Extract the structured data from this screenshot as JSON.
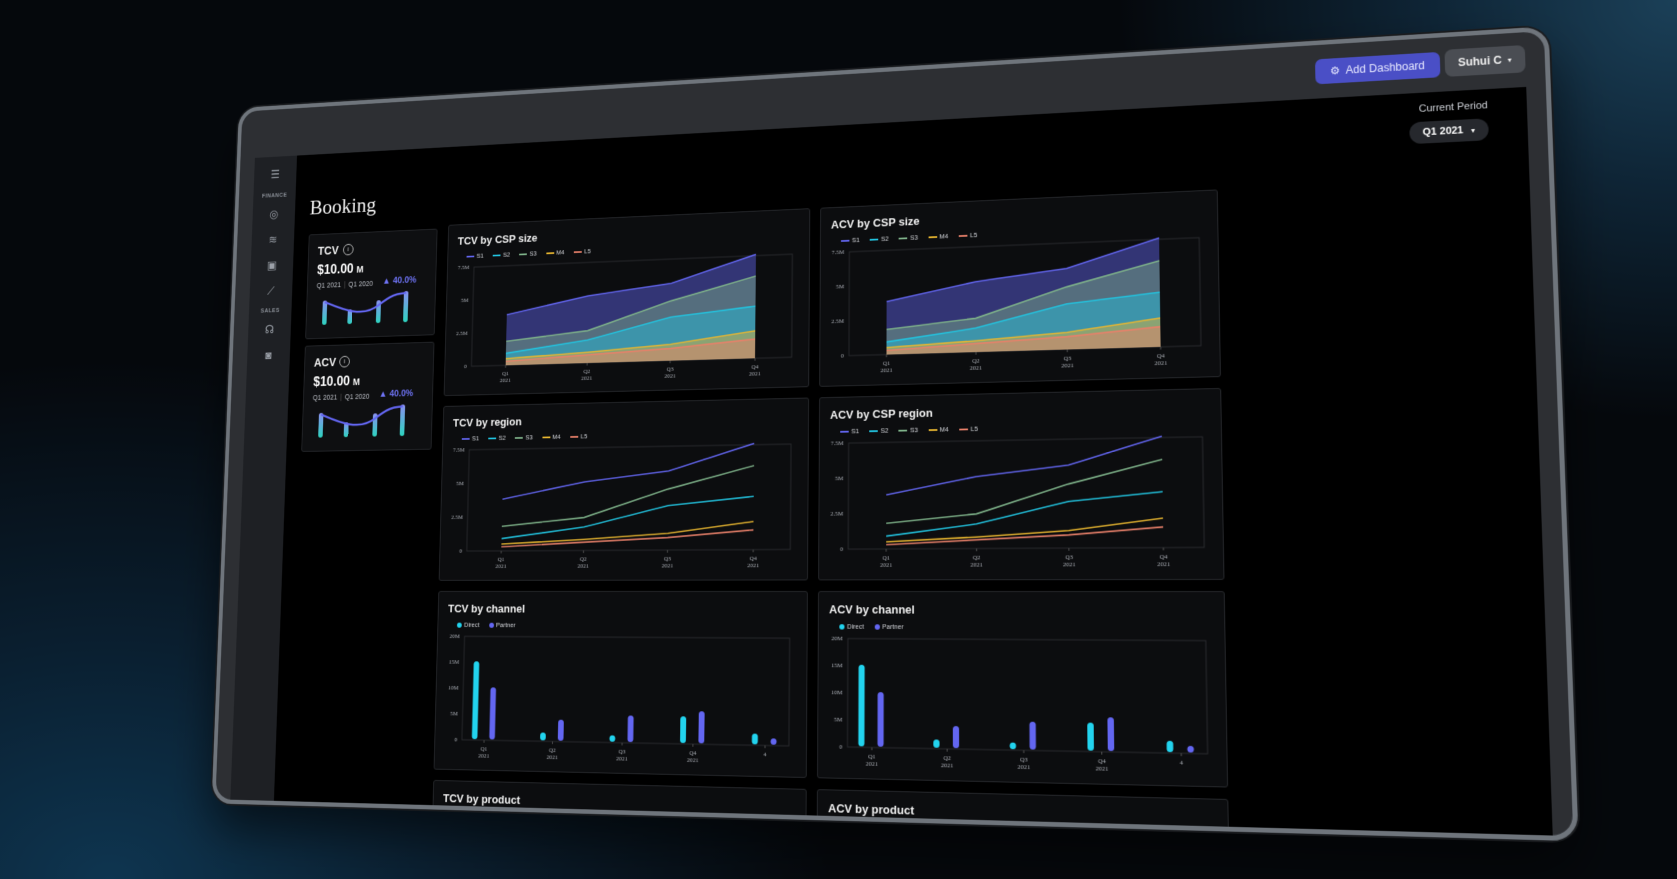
{
  "header": {
    "add_dashboard_label": "Add Dashboard",
    "user_label": "Suhui C"
  },
  "sidebar": {
    "section_finance": "FINANCE",
    "section_sales": "SALES"
  },
  "page": {
    "title": "Booking",
    "period_label": "Current Period",
    "period_value": "Q1 2021"
  },
  "kpis": [
    {
      "title": "TCV",
      "value": "$10.00",
      "unit": "M",
      "period_current": "Q1 2021",
      "period_prev": "Q1 2020",
      "change": "40.0%"
    },
    {
      "title": "ACV",
      "value": "$10.00",
      "unit": "M",
      "period_current": "Q1 2021",
      "period_prev": "Q1 2020",
      "change": "40.0%"
    }
  ],
  "colors": {
    "s1": "#6366f1",
    "s2": "#22c4e0",
    "s3": "#7fb38a",
    "m4": "#e8b630",
    "l5": "#e8806a",
    "direct": "#22d3ee",
    "partner": "#6366f1"
  },
  "chart_data": [
    {
      "type": "area",
      "title": "TCV by CSP size",
      "categories": [
        "Q1 2021",
        "Q2 2021",
        "Q3 2021",
        "Q4 2021"
      ],
      "y_ticks": [
        "0",
        "2.5M",
        "5M",
        "7.5M"
      ],
      "ylim": [
        0,
        7500000
      ],
      "series": [
        {
          "name": "S1",
          "values": [
            3800000,
            5000000,
            5700000,
            7600000
          ]
        },
        {
          "name": "S2",
          "values": [
            900000,
            1700000,
            3200000,
            3800000
          ]
        },
        {
          "name": "S3",
          "values": [
            1800000,
            2400000,
            4400000,
            6000000
          ]
        },
        {
          "name": "M4",
          "values": [
            500000,
            800000,
            1200000,
            2000000
          ]
        },
        {
          "name": "L5",
          "values": [
            300000,
            600000,
            900000,
            1400000
          ]
        }
      ]
    },
    {
      "type": "area",
      "title": "ACV by CSP size",
      "categories": [
        "Q1 2021",
        "Q2 2021",
        "Q3 2021",
        "Q4 2021"
      ],
      "y_ticks": [
        "0",
        "2.5M",
        "5M",
        "7.5M"
      ],
      "ylim": [
        0,
        7500000
      ],
      "series": [
        {
          "name": "S1",
          "values": [
            3800000,
            5000000,
            5700000,
            7600000
          ]
        },
        {
          "name": "S2",
          "values": [
            900000,
            1700000,
            3200000,
            3800000
          ]
        },
        {
          "name": "S3",
          "values": [
            1800000,
            2400000,
            4400000,
            6000000
          ]
        },
        {
          "name": "M4",
          "values": [
            500000,
            800000,
            1200000,
            2000000
          ]
        },
        {
          "name": "L5",
          "values": [
            300000,
            600000,
            900000,
            1400000
          ]
        }
      ]
    },
    {
      "type": "line",
      "title": "TCV by region",
      "categories": [
        "Q1 2021",
        "Q2 2021",
        "Q3 2021",
        "Q4 2021"
      ],
      "y_ticks": [
        "0",
        "2.5M",
        "5M",
        "7.5M"
      ],
      "ylim": [
        0,
        7500000
      ],
      "series": [
        {
          "name": "S1",
          "values": [
            3800000,
            5000000,
            5700000,
            7600000
          ]
        },
        {
          "name": "S2",
          "values": [
            900000,
            1700000,
            3200000,
            3800000
          ]
        },
        {
          "name": "S3",
          "values": [
            1800000,
            2400000,
            4400000,
            6000000
          ]
        },
        {
          "name": "M4",
          "values": [
            500000,
            800000,
            1200000,
            2000000
          ]
        },
        {
          "name": "L5",
          "values": [
            300000,
            600000,
            900000,
            1400000
          ]
        }
      ]
    },
    {
      "type": "line",
      "title": "ACV by CSP region",
      "categories": [
        "Q1 2021",
        "Q2 2021",
        "Q3 2021",
        "Q4 2021"
      ],
      "y_ticks": [
        "0",
        "2.5M",
        "5M",
        "7.5M"
      ],
      "ylim": [
        0,
        7500000
      ],
      "series": [
        {
          "name": "S1",
          "values": [
            3800000,
            5000000,
            5700000,
            7600000
          ]
        },
        {
          "name": "S2",
          "values": [
            900000,
            1700000,
            3200000,
            3800000
          ]
        },
        {
          "name": "S3",
          "values": [
            1800000,
            2400000,
            4400000,
            6000000
          ]
        },
        {
          "name": "M4",
          "values": [
            500000,
            800000,
            1200000,
            2000000
          ]
        },
        {
          "name": "L5",
          "values": [
            300000,
            600000,
            900000,
            1400000
          ]
        }
      ]
    },
    {
      "type": "bar",
      "title": "TCV by channel",
      "categories": [
        "Q1 2021",
        "Q2 2021",
        "Q3 2021",
        "Q4 2021",
        "4"
      ],
      "y_ticks": [
        "0",
        "5M",
        "10M",
        "15M",
        "20M"
      ],
      "ylim": [
        0,
        20000000
      ],
      "series": [
        {
          "name": "Direct",
          "values": [
            15000000,
            1500000,
            1200000,
            5000000,
            2000000
          ]
        },
        {
          "name": "Partner",
          "values": [
            10000000,
            4000000,
            5000000,
            6000000,
            1000000
          ]
        }
      ]
    },
    {
      "type": "bar",
      "title": "ACV by channel",
      "categories": [
        "Q1 2021",
        "Q2 2021",
        "Q3 2021",
        "Q4 2021",
        "4"
      ],
      "y_ticks": [
        "0",
        "5M",
        "10M",
        "15M",
        "20M"
      ],
      "ylim": [
        0,
        20000000
      ],
      "series": [
        {
          "name": "Direct",
          "values": [
            15000000,
            1500000,
            1200000,
            5000000,
            2000000
          ]
        },
        {
          "name": "Partner",
          "values": [
            10000000,
            4000000,
            5000000,
            6000000,
            1000000
          ]
        }
      ]
    }
  ],
  "bottom_cards": {
    "tcv_product_title": "TCV by product",
    "acv_product_title": "ACV by product"
  }
}
